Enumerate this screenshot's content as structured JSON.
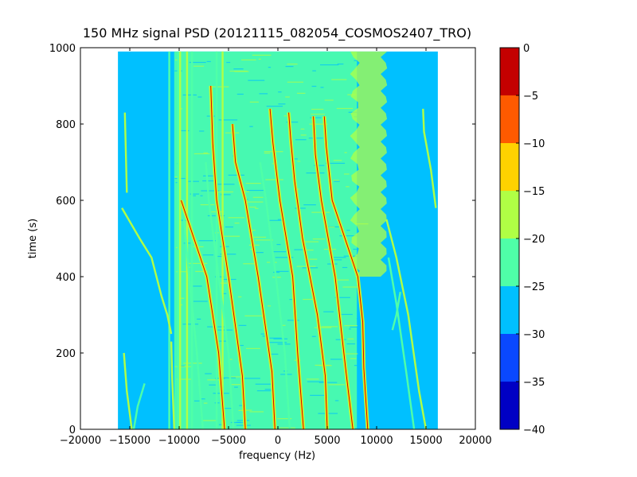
{
  "chart_data": {
    "type": "heatmap",
    "title": "150 MHz signal PSD (20121115_082054_COSMOS2407_TRO)",
    "xlabel": "frequency (Hz)",
    "ylabel": "time (s)",
    "xlim": [
      -20000,
      20000
    ],
    "ylim": [
      0,
      1000
    ],
    "xticks": [
      -20000,
      -15000,
      -10000,
      -5000,
      0,
      5000,
      10000,
      15000,
      20000
    ],
    "xtick_labels": [
      "−20000",
      "−15000",
      "−10000",
      "−5000",
      "0",
      "5000",
      "10000",
      "15000",
      "20000"
    ],
    "yticks": [
      0,
      200,
      400,
      600,
      800,
      1000
    ],
    "ytick_labels": [
      "0",
      "200",
      "400",
      "600",
      "800",
      "1000"
    ],
    "data_extent": {
      "x": [
        -16200,
        16200
      ],
      "y": [
        0,
        990
      ]
    },
    "background_level": -27.5,
    "noise_band": {
      "x": [
        -10500,
        8000
      ],
      "level": -22.5
    },
    "colorbar": {
      "min": -40,
      "max": 0,
      "ticks": [
        0,
        -5,
        -10,
        -15,
        -20,
        -25,
        -30,
        -35,
        -40
      ],
      "tick_labels": [
        "0",
        "−5",
        "−10",
        "−15",
        "−20",
        "−25",
        "−30",
        "−35",
        "−40"
      ],
      "bands": [
        {
          "from": -40,
          "to": -35,
          "color": "#0000c4"
        },
        {
          "from": -35,
          "to": -30,
          "color": "#0a48ff"
        },
        {
          "from": -30,
          "to": -25,
          "color": "#00c0ff"
        },
        {
          "from": -25,
          "to": -20,
          "color": "#4fffa8"
        },
        {
          "from": -20,
          "to": -15,
          "color": "#b0ff45"
        },
        {
          "from": -15,
          "to": -10,
          "color": "#ffd200"
        },
        {
          "from": -10,
          "to": -5,
          "color": "#ff5a00"
        },
        {
          "from": -5,
          "to": 0,
          "color": "#c40000"
        }
      ]
    },
    "vertical_lines": [
      {
        "x": -11000,
        "level": -22.5
      },
      {
        "x": -10100,
        "level": -22.5
      },
      {
        "x": -9900,
        "level": -17.5
      },
      {
        "x": -9200,
        "level": -17.5
      },
      {
        "x": -8700,
        "level": -22.5
      },
      {
        "x": -6200,
        "level": -22.5
      },
      {
        "x": -5600,
        "level": -17.5
      }
    ],
    "bright_band": {
      "x": [
        7800,
        10800
      ],
      "y": [
        400,
        990
      ],
      "level": -17.5
    },
    "traces": [
      {
        "level": -12.5,
        "points": [
          [
            -5400,
            0
          ],
          [
            -6000,
            200
          ],
          [
            -7200,
            400
          ],
          [
            -9800,
            600
          ]
        ]
      },
      {
        "level": -12.5,
        "points": [
          [
            -3300,
            0
          ],
          [
            -3600,
            140
          ],
          [
            -5000,
            400
          ],
          [
            -6200,
            600
          ],
          [
            -6600,
            750
          ],
          [
            -6800,
            900
          ]
        ]
      },
      {
        "level": -12.5,
        "points": [
          [
            -300,
            0
          ],
          [
            -600,
            150
          ],
          [
            -2000,
            400
          ],
          [
            -3300,
            600
          ],
          [
            -4300,
            700
          ],
          [
            -4600,
            800
          ]
        ]
      },
      {
        "level": -12.5,
        "points": [
          [
            2600,
            0
          ],
          [
            2000,
            200
          ],
          [
            1500,
            400
          ],
          [
            200,
            600
          ],
          [
            -500,
            750
          ],
          [
            -800,
            840
          ]
        ]
      },
      {
        "level": -12.5,
        "points": [
          [
            5000,
            0
          ],
          [
            4800,
            140
          ],
          [
            4000,
            300
          ],
          [
            2500,
            500
          ],
          [
            1700,
            650
          ],
          [
            1300,
            760
          ],
          [
            1100,
            830
          ]
        ]
      },
      {
        "level": -12.5,
        "points": [
          [
            7600,
            0
          ],
          [
            6900,
            150
          ],
          [
            5800,
            400
          ],
          [
            4400,
            600
          ],
          [
            3800,
            720
          ],
          [
            3600,
            820
          ]
        ]
      },
      {
        "level": -12.5,
        "points": [
          [
            9100,
            0
          ],
          [
            8700,
            160
          ],
          [
            8600,
            280
          ],
          [
            8100,
            400
          ],
          [
            5500,
            600
          ],
          [
            4900,
            740
          ],
          [
            4700,
            820
          ]
        ]
      },
      {
        "level": -17.5,
        "points": [
          [
            15000,
            0
          ],
          [
            14300,
            100
          ],
          [
            13200,
            300
          ],
          [
            12000,
            450
          ],
          [
            11000,
            550
          ]
        ]
      },
      {
        "level": -17.5,
        "points": [
          [
            16000,
            580
          ],
          [
            15500,
            680
          ],
          [
            14800,
            780
          ],
          [
            14700,
            840
          ]
        ]
      },
      {
        "level": -17.5,
        "points": [
          [
            -15800,
            580
          ],
          [
            -14000,
            500
          ],
          [
            -12800,
            450
          ],
          [
            -11800,
            350
          ],
          [
            -11200,
            300
          ],
          [
            -10800,
            250
          ]
        ]
      },
      {
        "level": -17.5,
        "points": [
          [
            -15600,
            200
          ],
          [
            -15300,
            100
          ],
          [
            -14800,
            0
          ]
        ]
      },
      {
        "level": -17.5,
        "points": [
          [
            -10500,
            0
          ],
          [
            -10700,
            130
          ],
          [
            -10800,
            230
          ]
        ]
      },
      {
        "level": -17.5,
        "points": [
          [
            -15500,
            830
          ],
          [
            -15400,
            730
          ],
          [
            -15300,
            620
          ]
        ]
      },
      {
        "level": -22.5,
        "points": [
          [
            -7600,
            0
          ],
          [
            -8200,
            200
          ],
          [
            -9000,
            400
          ],
          [
            -9500,
            550
          ]
        ]
      },
      {
        "level": -22.5,
        "points": [
          [
            -4500,
            0
          ],
          [
            -5000,
            200
          ],
          [
            -6000,
            400
          ],
          [
            -7000,
            600
          ],
          [
            -7300,
            700
          ]
        ]
      },
      {
        "level": -22.5,
        "points": [
          [
            1200,
            0
          ],
          [
            700,
            200
          ],
          [
            -200,
            400
          ],
          [
            -1200,
            600
          ],
          [
            -1800,
            700
          ]
        ]
      },
      {
        "level": -22.5,
        "points": [
          [
            13800,
            0
          ],
          [
            13000,
            150
          ],
          [
            12000,
            330
          ],
          [
            11200,
            450
          ]
        ]
      },
      {
        "level": -22.5,
        "points": [
          [
            -13500,
            120
          ],
          [
            -14200,
            60
          ],
          [
            -14600,
            0
          ]
        ]
      },
      {
        "level": -22.5,
        "points": [
          [
            12400,
            360
          ],
          [
            12000,
            300
          ],
          [
            11600,
            260
          ]
        ]
      }
    ]
  }
}
